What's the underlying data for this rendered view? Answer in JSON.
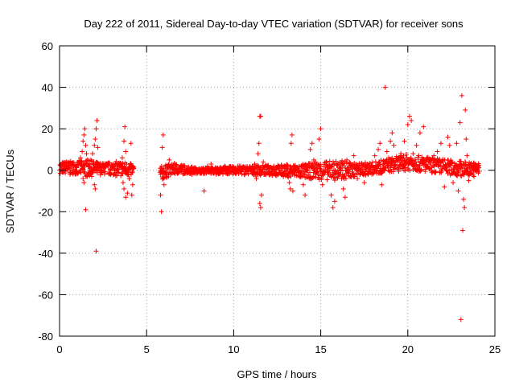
{
  "chart_data": {
    "type": "scatter",
    "title": "Day 222 of 2011, Sidereal Day-to-day VTEC variation (SDTVAR) for receiver sons",
    "xlabel": "GPS time / hours",
    "ylabel": "SDTVAR / TECUs",
    "xlim": [
      0,
      25
    ],
    "ylim": [
      -80,
      60
    ],
    "xticks": [
      0,
      5,
      10,
      15,
      20,
      25
    ],
    "yticks": [
      -80,
      -60,
      -40,
      -20,
      0,
      20,
      40,
      60
    ],
    "xtick_labels": [
      "0",
      "5",
      "10",
      "15",
      "20",
      "25"
    ],
    "ytick_labels": [
      "-80",
      "-60",
      "-40",
      "-20",
      "0",
      "20",
      "40",
      "60"
    ],
    "grid": true,
    "legend": "none",
    "marker": "+",
    "color": "#ff0000",
    "series": [
      {
        "name": "SDTVAR",
        "points": [
          [
            0.1,
            3
          ],
          [
            0.2,
            -1
          ],
          [
            0.3,
            2
          ],
          [
            0.4,
            4
          ],
          [
            0.5,
            1
          ],
          [
            0.6,
            -2
          ],
          [
            0.7,
            3
          ],
          [
            0.8,
            0
          ],
          [
            0.9,
            2
          ],
          [
            1.0,
            -1
          ],
          [
            1.1,
            4
          ],
          [
            1.2,
            6
          ],
          [
            1.3,
            9
          ],
          [
            1.35,
            14
          ],
          [
            1.4,
            17
          ],
          [
            1.45,
            20
          ],
          [
            1.5,
            12
          ],
          [
            1.55,
            8
          ],
          [
            1.6,
            5
          ],
          [
            1.35,
            -4
          ],
          [
            1.4,
            -6
          ],
          [
            1.5,
            -19
          ],
          [
            1.7,
            2
          ],
          [
            1.8,
            5
          ],
          [
            1.9,
            8
          ],
          [
            2.0,
            12
          ],
          [
            2.05,
            15
          ],
          [
            2.1,
            20
          ],
          [
            2.15,
            24
          ],
          [
            2.2,
            11
          ],
          [
            2.0,
            -7
          ],
          [
            2.05,
            -9
          ],
          [
            2.1,
            -39
          ],
          [
            2.3,
            2
          ],
          [
            2.5,
            1
          ],
          [
            2.7,
            3
          ],
          [
            2.9,
            0
          ],
          [
            3.1,
            2
          ],
          [
            3.3,
            -1
          ],
          [
            3.5,
            3
          ],
          [
            3.6,
            6
          ],
          [
            3.7,
            14
          ],
          [
            3.75,
            21
          ],
          [
            3.8,
            9
          ],
          [
            3.65,
            -6
          ],
          [
            3.7,
            -9
          ],
          [
            3.8,
            -13
          ],
          [
            3.9,
            -11
          ],
          [
            4.0,
            -4
          ],
          [
            4.1,
            13
          ],
          [
            4.15,
            -12
          ],
          [
            4.2,
            -7
          ],
          [
            5.8,
            -12
          ],
          [
            5.85,
            -20
          ],
          [
            5.9,
            11
          ],
          [
            5.95,
            17
          ],
          [
            6.0,
            -7
          ],
          [
            6.1,
            -3
          ],
          [
            6.2,
            2
          ],
          [
            6.3,
            5
          ],
          [
            6.5,
            1
          ],
          [
            6.8,
            -1
          ],
          [
            7.0,
            1
          ],
          [
            7.3,
            0
          ],
          [
            7.6,
            -2
          ],
          [
            7.8,
            1
          ],
          [
            8.1,
            -1
          ],
          [
            8.3,
            -10
          ],
          [
            8.5,
            2
          ],
          [
            8.7,
            3
          ],
          [
            9.0,
            -2
          ],
          [
            9.2,
            1
          ],
          [
            9.5,
            2
          ],
          [
            9.8,
            -1
          ],
          [
            10.1,
            1
          ],
          [
            10.4,
            2
          ],
          [
            10.7,
            0
          ],
          [
            11.0,
            1
          ],
          [
            11.2,
            3
          ],
          [
            11.3,
            -4
          ],
          [
            11.4,
            8
          ],
          [
            11.45,
            13
          ],
          [
            11.5,
            26
          ],
          [
            11.55,
            26
          ],
          [
            11.5,
            -16
          ],
          [
            11.55,
            -18
          ],
          [
            11.6,
            -12
          ],
          [
            11.7,
            4
          ],
          [
            12.0,
            1
          ],
          [
            12.3,
            2
          ],
          [
            12.6,
            0
          ],
          [
            12.9,
            2
          ],
          [
            13.1,
            -3
          ],
          [
            13.2,
            -6
          ],
          [
            13.25,
            -9
          ],
          [
            13.3,
            13
          ],
          [
            13.35,
            17
          ],
          [
            13.4,
            -10
          ],
          [
            13.5,
            2
          ],
          [
            13.8,
            -3
          ],
          [
            14.0,
            -7
          ],
          [
            14.1,
            -12
          ],
          [
            14.2,
            2
          ],
          [
            14.4,
            10
          ],
          [
            14.5,
            13
          ],
          [
            14.6,
            5
          ],
          [
            14.7,
            4
          ],
          [
            14.9,
            15
          ],
          [
            15.0,
            20
          ],
          [
            15.1,
            -7
          ],
          [
            15.3,
            4
          ],
          [
            15.5,
            2
          ],
          [
            15.6,
            -12
          ],
          [
            15.7,
            -18
          ],
          [
            15.8,
            -15
          ],
          [
            16.0,
            3
          ],
          [
            16.2,
            -4
          ],
          [
            16.3,
            -9
          ],
          [
            16.4,
            -13
          ],
          [
            16.5,
            5
          ],
          [
            16.7,
            2
          ],
          [
            16.9,
            7
          ],
          [
            17.1,
            -4
          ],
          [
            17.3,
            1
          ],
          [
            17.5,
            -6
          ],
          [
            17.7,
            3
          ],
          [
            17.9,
            2
          ],
          [
            18.1,
            7
          ],
          [
            18.3,
            10
          ],
          [
            18.4,
            13
          ],
          [
            18.5,
            -7
          ],
          [
            18.6,
            3
          ],
          [
            18.7,
            40
          ],
          [
            18.8,
            9
          ],
          [
            18.9,
            6
          ],
          [
            19.0,
            14
          ],
          [
            19.1,
            18
          ],
          [
            19.2,
            12
          ],
          [
            19.4,
            4
          ],
          [
            19.6,
            8
          ],
          [
            19.8,
            14
          ],
          [
            20.0,
            22
          ],
          [
            20.1,
            26
          ],
          [
            20.2,
            24
          ],
          [
            20.3,
            8
          ],
          [
            20.5,
            12
          ],
          [
            20.7,
            18
          ],
          [
            20.9,
            21
          ],
          [
            21.1,
            5
          ],
          [
            21.3,
            3
          ],
          [
            21.5,
            7
          ],
          [
            21.7,
            9
          ],
          [
            21.9,
            13
          ],
          [
            22.1,
            -8
          ],
          [
            22.3,
            16
          ],
          [
            22.4,
            12
          ],
          [
            22.5,
            4
          ],
          [
            22.6,
            -6
          ],
          [
            22.7,
            2
          ],
          [
            22.8,
            13
          ],
          [
            22.9,
            -10
          ],
          [
            23.0,
            23
          ],
          [
            23.1,
            36
          ],
          [
            23.15,
            -29
          ],
          [
            23.2,
            -14
          ],
          [
            23.25,
            -18
          ],
          [
            23.3,
            29
          ],
          [
            23.35,
            15
          ],
          [
            23.4,
            7
          ],
          [
            23.05,
            -72
          ],
          [
            23.5,
            -5
          ],
          [
            23.6,
            3
          ],
          [
            23.7,
            1
          ],
          [
            23.8,
            -3
          ],
          [
            23.9,
            0
          ]
        ],
        "dense_band": {
          "x_range": [
            0,
            24.1
          ],
          "profile": [
            [
              0.0,
              -1.5,
              4.0
            ],
            [
              1.0,
              -2.0,
              4.5
            ],
            [
              1.5,
              -3.5,
              5.0
            ],
            [
              2.5,
              -2.0,
              3.5
            ],
            [
              3.5,
              -3.0,
              4.5
            ],
            [
              4.2,
              -2.5,
              3.0
            ],
            [
              5.8,
              -5.0,
              2.0
            ],
            [
              6.5,
              -2.0,
              3.5
            ],
            [
              8.0,
              -1.5,
              1.0
            ],
            [
              10.0,
              -2.0,
              2.0
            ],
            [
              12.0,
              -2.5,
              2.5
            ],
            [
              14.0,
              -4.0,
              3.0
            ],
            [
              16.0,
              -5.0,
              5.0
            ],
            [
              17.0,
              -3.0,
              3.5
            ],
            [
              18.0,
              -2.0,
              4.0
            ],
            [
              19.0,
              -1.0,
              6.0
            ],
            [
              20.0,
              0.0,
              8.0
            ],
            [
              21.0,
              -1.0,
              6.5
            ],
            [
              22.0,
              -2.0,
              5.5
            ],
            [
              23.0,
              -3.0,
              4.5
            ],
            [
              24.1,
              -2.0,
              3.5
            ]
          ]
        }
      }
    ]
  }
}
